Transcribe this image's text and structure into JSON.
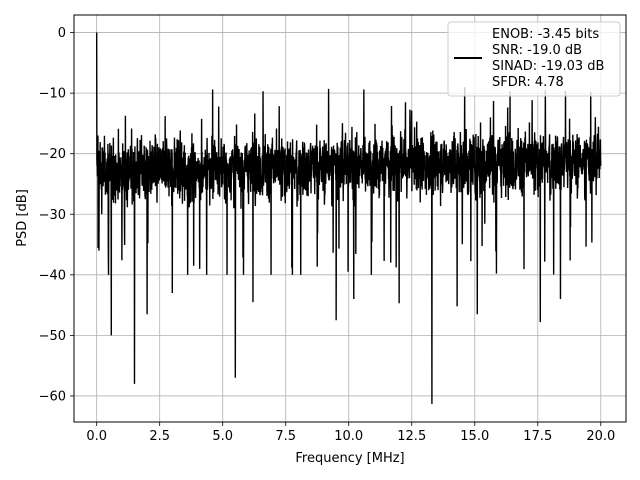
{
  "chart_data": {
    "type": "line",
    "title": "",
    "xlabel": "Frequency [MHz]",
    "ylabel": "PSD [dB]",
    "xlim": [
      -0.9,
      21.0
    ],
    "ylim": [
      -64.3,
      2.9
    ],
    "grid": true,
    "x_ticks": [
      0.0,
      2.5,
      5.0,
      7.5,
      10.0,
      12.5,
      15.0,
      17.5,
      20.0
    ],
    "x_tick_labels": [
      "0.0",
      "2.5",
      "5.0",
      "7.5",
      "10.0",
      "12.5",
      "15.0",
      "17.5",
      "20.0"
    ],
    "y_ticks": [
      0,
      -10,
      -20,
      -30,
      -40,
      -50,
      -60
    ],
    "y_tick_labels": [
      "0",
      "−10",
      "−20",
      "−30",
      "−40",
      "−50",
      "−60"
    ],
    "legend": {
      "placement": "upper-right",
      "entries": [
        "ENOB: -3.45 bits",
        "SNR: -19.0 dB",
        "SINAD: -19.03 dB",
        "SFDR: 4.78"
      ]
    },
    "series": [
      {
        "color": "#000000",
        "x_start": 0.0,
        "x_end": 20.0,
        "noise_floor_mean_db": -22,
        "noise_band_db": [
          -33,
          -12
        ],
        "trend": "noise floor rises slightly from about -23 dB to about -21 dB across 0-20 MHz",
        "points": [
          [
            0.0,
            0.0
          ],
          [
            0.05,
            -17.0
          ],
          [
            0.09,
            -36.0
          ],
          [
            0.12,
            -20.0
          ],
          [
            0.2,
            -30.0
          ],
          [
            0.58,
            -50.0
          ],
          [
            1.5,
            -58.0
          ],
          [
            2.0,
            -46.5
          ],
          [
            3.0,
            -43.0
          ],
          [
            5.5,
            -57.0
          ],
          [
            6.2,
            -44.5
          ],
          [
            9.5,
            -47.5
          ],
          [
            10.2,
            -44.0
          ],
          [
            12.0,
            -44.7
          ],
          [
            13.3,
            -61.3
          ],
          [
            14.3,
            -45.2
          ],
          [
            15.1,
            -46.5
          ],
          [
            17.6,
            -47.8
          ],
          [
            18.4,
            -44.0
          ],
          [
            4.6,
            -9.4
          ],
          [
            6.6,
            -9.7
          ],
          [
            9.2,
            -9.3
          ],
          [
            10.6,
            -9.4
          ],
          [
            14.6,
            -9.0
          ],
          [
            16.4,
            -9.7
          ],
          [
            17.8,
            -9.5
          ],
          [
            18.6,
            -9.6
          ],
          [
            19.6,
            -9.8
          ],
          [
            20.0,
            -22.0
          ]
        ]
      }
    ]
  }
}
